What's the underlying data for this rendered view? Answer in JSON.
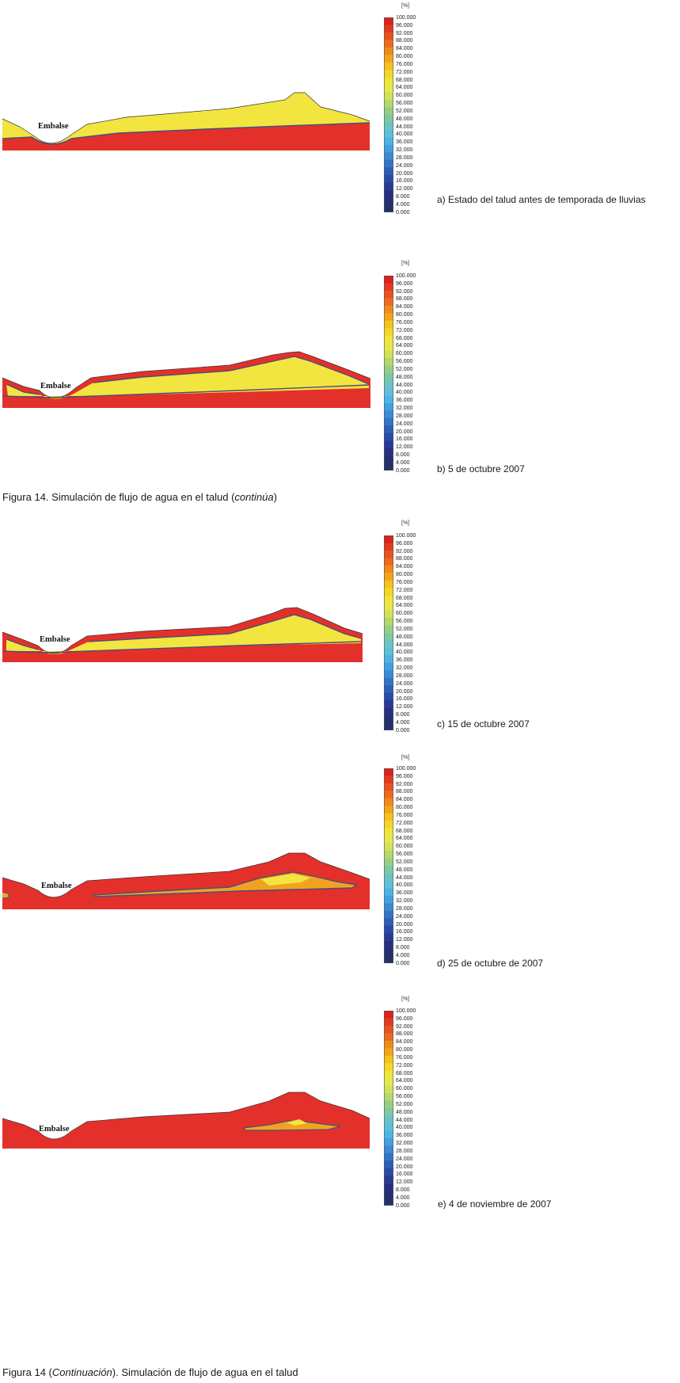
{
  "unit_label": "[%]",
  "scale_ticks": [
    "100.000",
    "96.000",
    "92.000",
    "88.000",
    "84.000",
    "80.000",
    "76.000",
    "72.000",
    "68.000",
    "64.000",
    "60.000",
    "56.000",
    "52.000",
    "48.000",
    "44.000",
    "40.000",
    "36.000",
    "32.000",
    "28.000",
    "24.000",
    "20.000",
    "16.000",
    "12.000",
    "8.000",
    "4.000",
    "0.000"
  ],
  "scale_colors": [
    "#d8231f",
    "#e33a1f",
    "#e8521f",
    "#ec6b1e",
    "#f08a1c",
    "#f3a51a",
    "#f6c21d",
    "#f4d627",
    "#efe43a",
    "#e5e84a",
    "#cfe25a",
    "#b3d86b",
    "#96cf84",
    "#7fc8a4",
    "#6cc3c2",
    "#5ebfdb",
    "#4fb3e6",
    "#42a0e0",
    "#3a8ad6",
    "#3374c9",
    "#2d5eb9",
    "#2a4aa8",
    "#283a96",
    "#26307f",
    "#253071",
    "#233069"
  ],
  "colors": {
    "red": "#e4302b",
    "yellow": "#f3e53f",
    "orange": "#f2a221",
    "contour": "#4a4f7a"
  },
  "reservoir_label": "Embalse",
  "panels": [
    {
      "caption": "a) Estado del talud antes de temporada de lluvias"
    },
    {
      "caption": "b) 5 de octubre 2007"
    },
    {
      "caption": "c) 15 de octubre 2007"
    },
    {
      "caption": "d) 25 de octubre de 2007"
    },
    {
      "caption": "e) 4 de noviembre de 2007"
    }
  ],
  "figure_caption_1": {
    "text": "Figura 14. Simulación de flujo de agua en el talud (",
    "italic": "continúa",
    "end": ")"
  },
  "figure_caption_2": {
    "start": "Figura 14 (",
    "italic": "Continuación",
    "text": "). Simulación de flujo de agua en el talud"
  }
}
